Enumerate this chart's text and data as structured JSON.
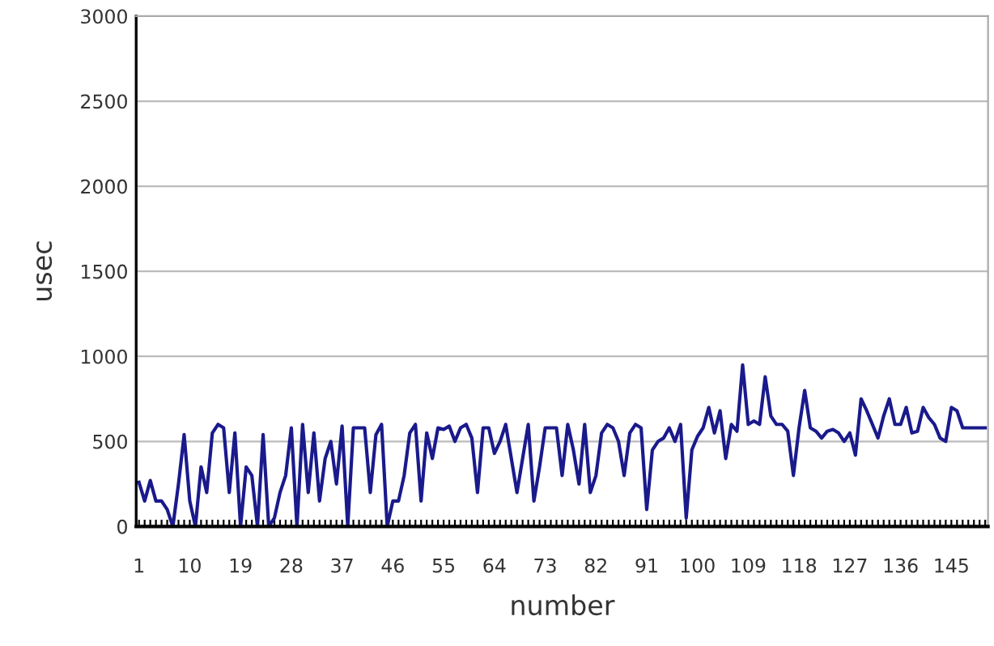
{
  "chart_data": {
    "type": "line",
    "xlabel": "number",
    "ylabel": "usec",
    "categories": [
      "1",
      null,
      null,
      null,
      null,
      null,
      null,
      null,
      null,
      "10",
      null,
      null,
      null,
      null,
      null,
      null,
      null,
      null,
      "19",
      null,
      null,
      null,
      null,
      null,
      null,
      null,
      null,
      "28",
      null,
      null,
      null,
      null,
      null,
      null,
      null,
      null,
      "37",
      null,
      null,
      null,
      null,
      null,
      null,
      null,
      null,
      "46",
      null,
      null,
      null,
      null,
      null,
      null,
      null,
      null,
      "55",
      null,
      null,
      null,
      null,
      null,
      null,
      null,
      null,
      "64",
      null,
      null,
      null,
      null,
      null,
      null,
      null,
      null,
      "73",
      null,
      null,
      null,
      null,
      null,
      null,
      null,
      null,
      "82",
      null,
      null,
      null,
      null,
      null,
      null,
      null,
      null,
      "91",
      null,
      null,
      null,
      null,
      null,
      null,
      null,
      null,
      "100",
      null,
      null,
      null,
      null,
      null,
      null,
      null,
      null,
      "109",
      null,
      null,
      null,
      null,
      null,
      null,
      null,
      null,
      "118",
      null,
      null,
      null,
      null,
      null,
      null,
      null,
      null,
      "127",
      null,
      null,
      null,
      null,
      null,
      null,
      null,
      null,
      "136",
      null,
      null,
      null,
      null,
      null,
      null,
      null,
      null,
      "145",
      null,
      null,
      null,
      null,
      null,
      null
    ],
    "series": [
      {
        "color": "#1a1a8c",
        "values": [
          260,
          150,
          270,
          150,
          150,
          100,
          0,
          250,
          540,
          150,
          0,
          350,
          200,
          550,
          600,
          580,
          200,
          550,
          0,
          350,
          300,
          0,
          540,
          0,
          50,
          200,
          300,
          580,
          0,
          600,
          200,
          550,
          150,
          400,
          500,
          250,
          590,
          0,
          580,
          580,
          580,
          200,
          540,
          600,
          0,
          150,
          150,
          300,
          550,
          600,
          150,
          550,
          400,
          580,
          570,
          590,
          500,
          580,
          600,
          520,
          200,
          580,
          580,
          430,
          500,
          600,
          400,
          200,
          400,
          600,
          150,
          350,
          580,
          580,
          580,
          300,
          600,
          450,
          250,
          600,
          200,
          300,
          550,
          600,
          580,
          500,
          300,
          550,
          600,
          580,
          100,
          450,
          500,
          520,
          580,
          500,
          600,
          50,
          450,
          530,
          580,
          700,
          550,
          680,
          400,
          600,
          560,
          950,
          600,
          620,
          600,
          880,
          650,
          600,
          600,
          560,
          300,
          580,
          800,
          580,
          560,
          520,
          560,
          570,
          550,
          500,
          550,
          420,
          750,
          680,
          600,
          520,
          650,
          750,
          600,
          600,
          700,
          550,
          560,
          700,
          640,
          600,
          520,
          500,
          700,
          680,
          580,
          580,
          580,
          580,
          580
        ]
      }
    ],
    "ylim": [
      0,
      3000
    ],
    "yticks": [
      0,
      500,
      1000,
      1500,
      2000,
      2500,
      3000
    ],
    "grid": "y",
    "marker": "none",
    "line_style": "solid"
  }
}
